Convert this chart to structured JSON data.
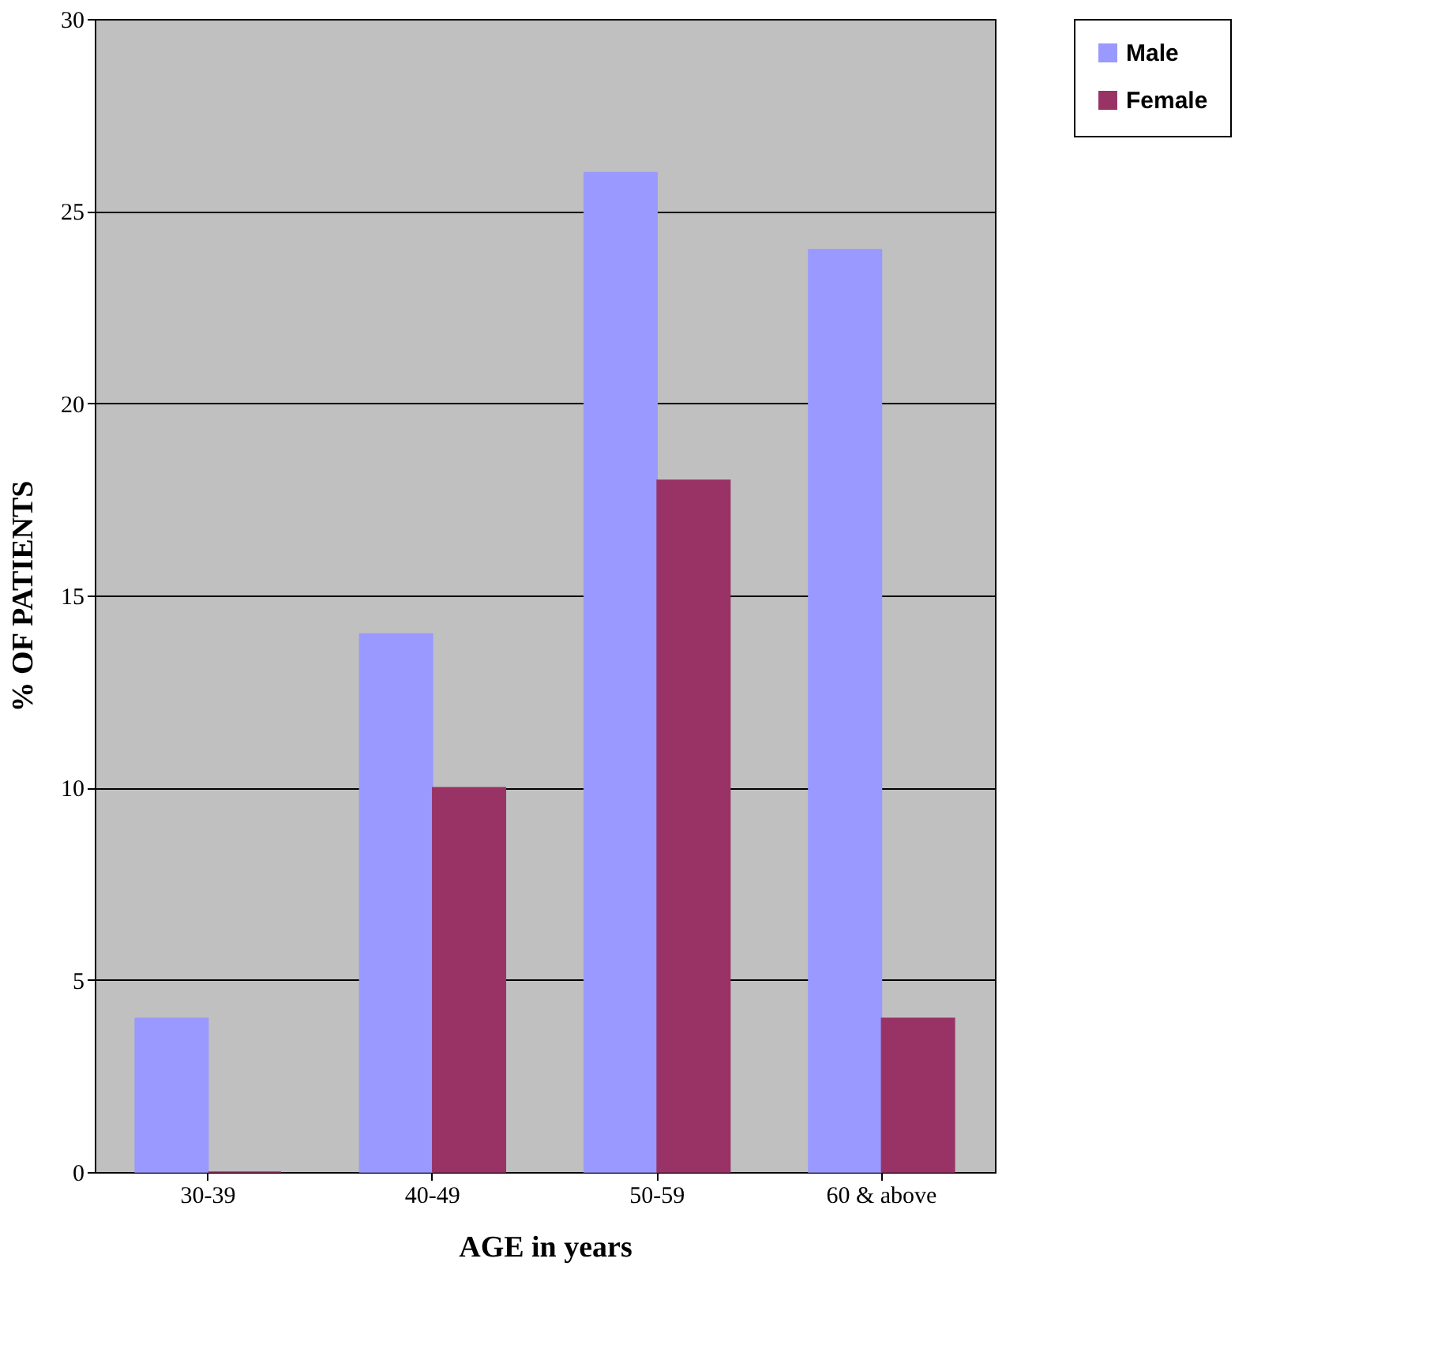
{
  "chart_data": {
    "type": "bar",
    "xlabel": "AGE in years",
    "ylabel": "% OF PATIENTS",
    "categories": [
      "30-39",
      "40-49",
      "50-59",
      "60 & above"
    ],
    "series": [
      {
        "name": "Male",
        "color": "#9999ff",
        "values": [
          4,
          14,
          26,
          24
        ]
      },
      {
        "name": "Female",
        "color": "#993366",
        "values": [
          0,
          10,
          18,
          4
        ]
      }
    ],
    "ylim": [
      0,
      30
    ],
    "yticks": [
      0,
      5,
      10,
      15,
      20,
      25,
      30
    ],
    "grid": "y",
    "legend": "right"
  }
}
